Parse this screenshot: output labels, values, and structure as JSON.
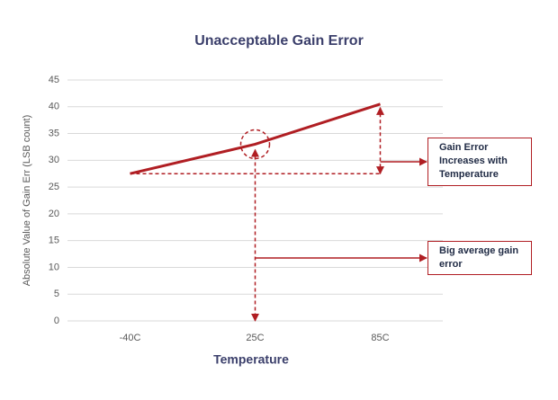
{
  "chart_data": {
    "type": "line",
    "title": "Unacceptable Gain Error",
    "x_label": "Temperature",
    "y_label": "Absolute Value of Gain Err (LSB count)",
    "categories": [
      "-40C",
      "25C",
      "85C"
    ],
    "values": [
      27.5,
      33,
      40.5
    ],
    "color": "#b01e23",
    "ylim": [
      0,
      45
    ],
    "yticks": [
      0,
      5,
      10,
      15,
      20,
      25,
      30,
      35,
      40,
      45
    ],
    "grid": true,
    "annotations": [
      "Gain Error Increases with Temperature",
      "Big average gain error"
    ]
  }
}
